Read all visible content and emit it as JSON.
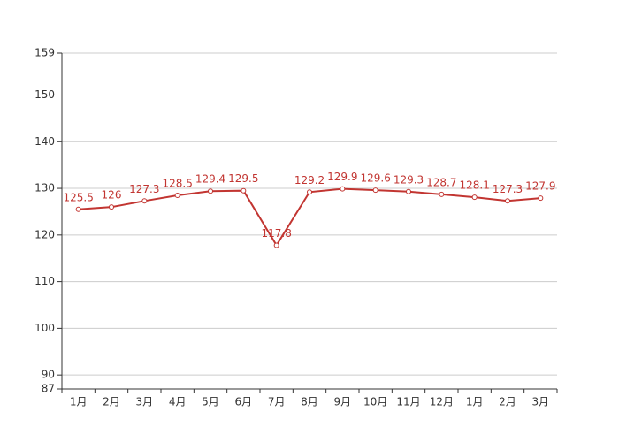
{
  "chart_data": {
    "type": "line",
    "categories": [
      "1月",
      "2月",
      "3月",
      "4月",
      "5月",
      "6月",
      "7月",
      "8月",
      "9月",
      "10月",
      "11月",
      "12月",
      "1月",
      "2月",
      "3月"
    ],
    "series": [
      {
        "color": "#c23531",
        "values": [
          125.5,
          126,
          127.3,
          128.5,
          129.4,
          129.5,
          117.8,
          129.2,
          129.9,
          129.6,
          129.3,
          128.7,
          128.1,
          127.3,
          127.9
        ]
      }
    ],
    "ylim": [
      87,
      159
    ],
    "yticks": [
      87,
      90,
      100,
      110,
      120,
      130,
      140,
      150,
      159
    ],
    "grid": true
  }
}
